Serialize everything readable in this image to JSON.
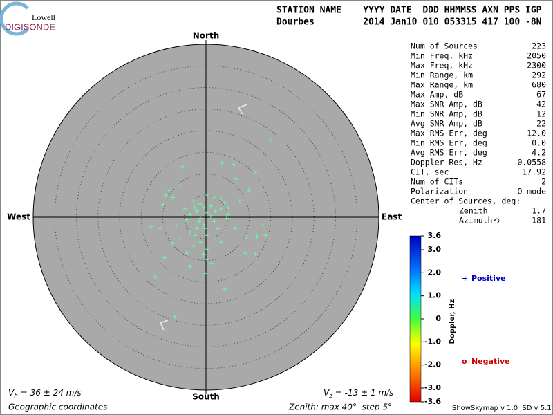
{
  "logo": {
    "top": "Lowell",
    "bottom": "DIGISONDE"
  },
  "header": {
    "line1": "STATION NAME    YYYY DATE  DDD HHMMSS AXN PPS IGP",
    "line2": "Dourbes         2014 Jan10 010 053315 417 100 -8N"
  },
  "chart_data": {
    "type": "scatter",
    "directions": {
      "north": "North",
      "south": "South",
      "east": "East",
      "west": "West"
    },
    "xlim": [
      -40,
      40
    ],
    "ylim": [
      -40,
      40
    ],
    "zenith_max": 40,
    "zenith_step": 5,
    "series": [
      {
        "name": "Positive",
        "color": "#66ffa0",
        "x": [
          14.9,
          3.7,
          6.4,
          -5.4,
          11.5,
          7.0,
          -6.1,
          -8.6,
          -9.3,
          -7.7,
          -9.9,
          9.9,
          7.8,
          0.3,
          1.9,
          3.5,
          -2.9,
          -1.3,
          -0.5,
          -2.1,
          0.3,
          1.1,
          -1.3,
          -3.7,
          -4.5,
          1.9,
          3.5,
          5.1,
          6.7,
          13.1,
          13.8,
          11.8,
          9.4,
          -12.8,
          -10.6,
          -6.9,
          -6.1,
          -3.7,
          -2.1,
          -0.5,
          0.3,
          1.9,
          3.5,
          -1.3,
          -2.9,
          0.3,
          -0.5,
          -4.5,
          -7.7,
          -9.6,
          -3.7,
          -0.2,
          0.3,
          1.3,
          9.1,
          11.5,
          -11.8,
          4.3,
          -7.2,
          4.8,
          2.7,
          5.1,
          4.3,
          -1.6,
          -2.6,
          1.1,
          -0.3,
          2.2,
          -4.8,
          -2.6
        ],
        "y": [
          17.9,
          12.5,
          12.2,
          11.7,
          10.4,
          8.8,
          7.4,
          6.2,
          5.1,
          4.6,
          2.9,
          6.2,
          3.8,
          5.1,
          4.6,
          4.3,
          3.8,
          3.0,
          2.2,
          1.4,
          1.0,
          0.3,
          -0.2,
          0.6,
          -0.6,
          -1.0,
          1.9,
          0.6,
          -2.6,
          -1.8,
          -4.2,
          -4.5,
          -4.6,
          -2.2,
          -2.6,
          -1.9,
          -5.0,
          -3.4,
          -2.6,
          -1.8,
          -4.2,
          -5.0,
          -5.8,
          -5.8,
          -6.6,
          -7.4,
          -8.6,
          -8.3,
          -6.1,
          -9.4,
          -11.4,
          -13.0,
          -9.8,
          -10.7,
          -8.3,
          -8.5,
          -13.8,
          -16.6,
          -23.0,
          -0.2,
          -2.6,
          2.2,
          3.4,
          -1.0,
          2.2,
          2.6,
          -2.6,
          1.4,
          1.9,
          -4.2
        ]
      },
      {
        "name": "Negative",
        "color": "#d00000",
        "x": [],
        "y": []
      }
    ]
  },
  "stats": [
    [
      "Num of Sources",
      "223"
    ],
    [
      "Min Freq, kHz",
      "2050"
    ],
    [
      "Max Freq, kHz",
      "2300"
    ],
    [
      "Min Range, km",
      "292"
    ],
    [
      "Max Range, km",
      "680"
    ],
    [
      "Max Amp, dB",
      "67"
    ],
    [
      "Max SNR Amp, dB",
      "42"
    ],
    [
      "Min SNR Amp, dB",
      "12"
    ],
    [
      "Avg SNR Amp, dB",
      "22"
    ],
    [
      "Max RMS Err, deg",
      "12.0"
    ],
    [
      "Min RMS Err, deg",
      "0.0"
    ],
    [
      "Avg RMS Err, deg",
      "4.2"
    ],
    [
      "Doppler Res, Hz",
      "0.0558"
    ],
    [
      "CIT, sec",
      "17.92"
    ],
    [
      "Num of CITs",
      "2"
    ],
    [
      "Polarization",
      "O-mode"
    ]
  ],
  "center": {
    "title": "Center of Sources, deg:",
    "rows": [
      [
        "Zenith",
        "1.7"
      ],
      [
        "Azimuth",
        "181"
      ]
    ]
  },
  "colorbar": {
    "label": "Doppler, Hz",
    "lim": [
      -3.6,
      3.6
    ],
    "ticks": [
      3.6,
      {
        "value": 3,
        "label": "3.0"
      },
      {
        "value": 2,
        "label": "2.0"
      },
      {
        "value": 1,
        "label": "1.0"
      },
      0,
      {
        "value": -1,
        "label": "-1.0"
      },
      {
        "value": -2,
        "label": "-2.0"
      },
      {
        "value": -3,
        "label": "-3.0"
      },
      -3.6
    ]
  },
  "legend": {
    "positive_symbol": "+",
    "negative_symbol": "o"
  },
  "footer": {
    "vh": {
      "v": "V",
      "sub": "h",
      "rest": " = 36 ± 24 m/s"
    },
    "vz": {
      "v": "V",
      "sub": "z",
      "rest": " = -13 ± 1 m/s"
    },
    "coords": "Geographic coordinates",
    "zenith": "Zenith: max 40°  step 5°",
    "version": "ShowSkymap v 1.0  SD v 5.1"
  }
}
